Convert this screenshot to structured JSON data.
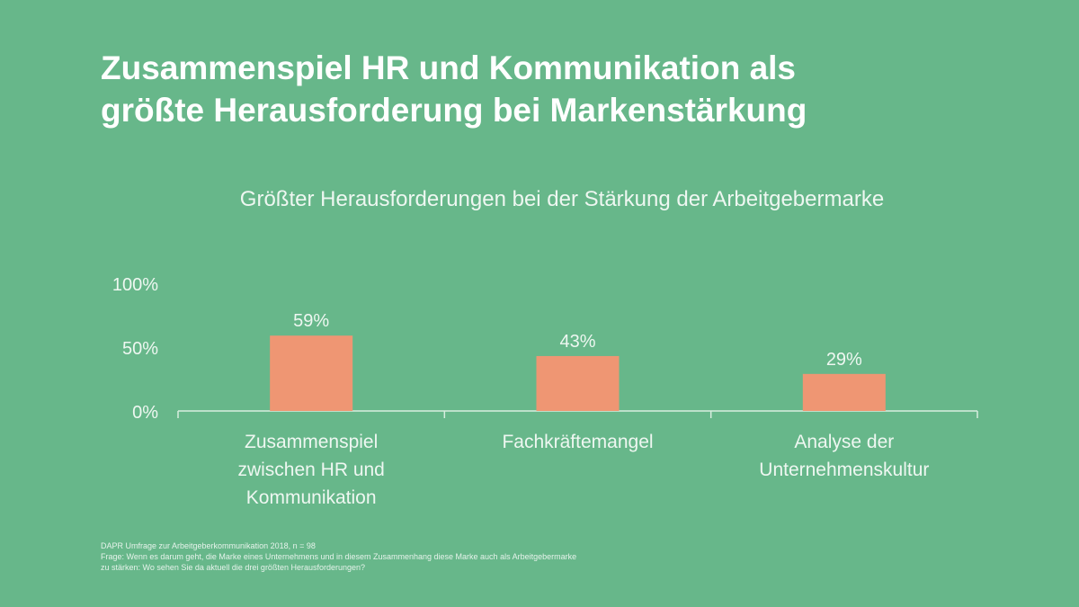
{
  "title_lines": [
    "Zusammenspiel HR und Kommunikation als",
    "größte Herausforderung bei Markenstärkung"
  ],
  "chart_data": {
    "type": "bar",
    "title": "Größter Herausforderungen bei der Stärkung der Arbeitgebermarke",
    "categories": [
      [
        "Zusammenspiel",
        "zwischen HR und",
        "Kommunikation"
      ],
      [
        "Fachkräftemangel"
      ],
      [
        "Analyse der",
        "Unternehmenskultur"
      ]
    ],
    "values": [
      59,
      43,
      29
    ],
    "data_labels": [
      "59%",
      "43%",
      "29%"
    ],
    "yticks": [
      0,
      50,
      100
    ],
    "ytick_labels": [
      "0%",
      "50%",
      "100%"
    ],
    "ylim": [
      0,
      100
    ],
    "xlabel": "",
    "ylabel": "",
    "grid": false,
    "bar_color": "#ef9673"
  },
  "footnote": [
    "DAPR Umfrage zur Arbeitgeberkommunikation 2018, n = 98",
    "Frage: Wenn es darum geht, die Marke eines Unternehmens und in diesem Zusammenhang diese Marke auch als Arbeitgebermarke",
    "zu stärken: Wo sehen Sie da aktuell die drei größten Herausforderungen?"
  ]
}
